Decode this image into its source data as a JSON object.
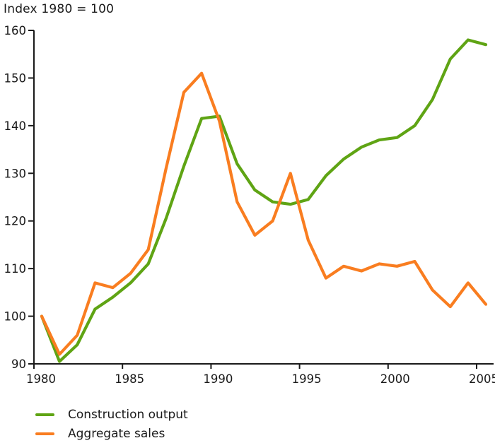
{
  "chart_data": {
    "type": "line",
    "title": "Index 1980 = 100",
    "xlabel": "",
    "ylabel": "",
    "x": [
      1980,
      1981,
      1982,
      1983,
      1984,
      1985,
      1986,
      1987,
      1988,
      1989,
      1990,
      1991,
      1992,
      1993,
      1994,
      1995,
      1996,
      1997,
      1998,
      1999,
      2000,
      2001,
      2002,
      2003,
      2004,
      2005
    ],
    "series": [
      {
        "name": "Construction output",
        "color": "#5fa414",
        "values": [
          100,
          90.5,
          94,
          101.5,
          104,
          107,
          111,
          120.5,
          131.5,
          141.5,
          142,
          132,
          126.5,
          124,
          123.5,
          124.5,
          129.5,
          133,
          135.5,
          137,
          137.5,
          140,
          145.5,
          154,
          158,
          157
        ]
      },
      {
        "name": "Aggregate sales",
        "color": "#f97d20",
        "values": [
          100,
          92,
          96,
          107,
          106,
          109,
          114,
          131,
          147,
          151,
          141,
          124,
          117,
          120,
          130,
          116,
          108,
          110.5,
          109.5,
          111,
          110.5,
          111.5,
          105.5,
          102,
          107,
          102.5
        ]
      }
    ],
    "xticks": [
      1980,
      1985,
      1990,
      1995,
      2000,
      2005
    ],
    "ylim": [
      90,
      160
    ],
    "ytick_step": 10,
    "grid": false,
    "legend_position": "bottom-left",
    "axis_color": "#1a1a1a"
  }
}
